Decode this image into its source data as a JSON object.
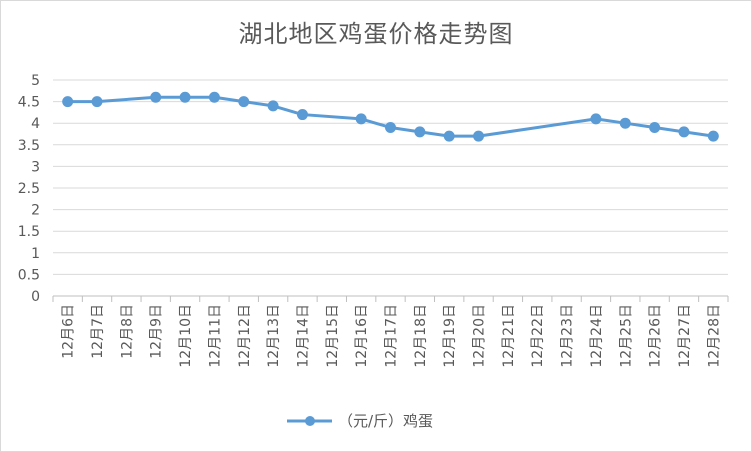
{
  "chart_data": {
    "type": "line",
    "title": "湖北地区鸡蛋价格走势图",
    "xlabel": "",
    "ylabel": "",
    "ylim": [
      0,
      5
    ],
    "yticks": [
      "0",
      "0.5",
      "1",
      "1.5",
      "2",
      "2.5",
      "3",
      "3.5",
      "4",
      "4.5",
      "5"
    ],
    "categories": [
      "12月6日",
      "12月7日",
      "12月8日",
      "12月9日",
      "12月10日",
      "12月11日",
      "12月12日",
      "12月13日",
      "12月14日",
      "12月15日",
      "12月16日",
      "12月17日",
      "12月18日",
      "12月19日",
      "12月20日",
      "12月21日",
      "12月22日",
      "12月23日",
      "12月24日",
      "12月25日",
      "12月26日",
      "12月27日",
      "12月28日"
    ],
    "series": [
      {
        "name": "（元/斤）鸡蛋",
        "color": "#5b9bd5",
        "values": [
          4.5,
          4.5,
          null,
          4.6,
          4.6,
          4.6,
          4.5,
          4.4,
          4.2,
          null,
          4.1,
          3.9,
          3.8,
          3.7,
          3.7,
          null,
          null,
          null,
          4.1,
          4.0,
          3.9,
          3.8,
          3.7
        ]
      }
    ],
    "grid": true,
    "legend": "bottom"
  }
}
